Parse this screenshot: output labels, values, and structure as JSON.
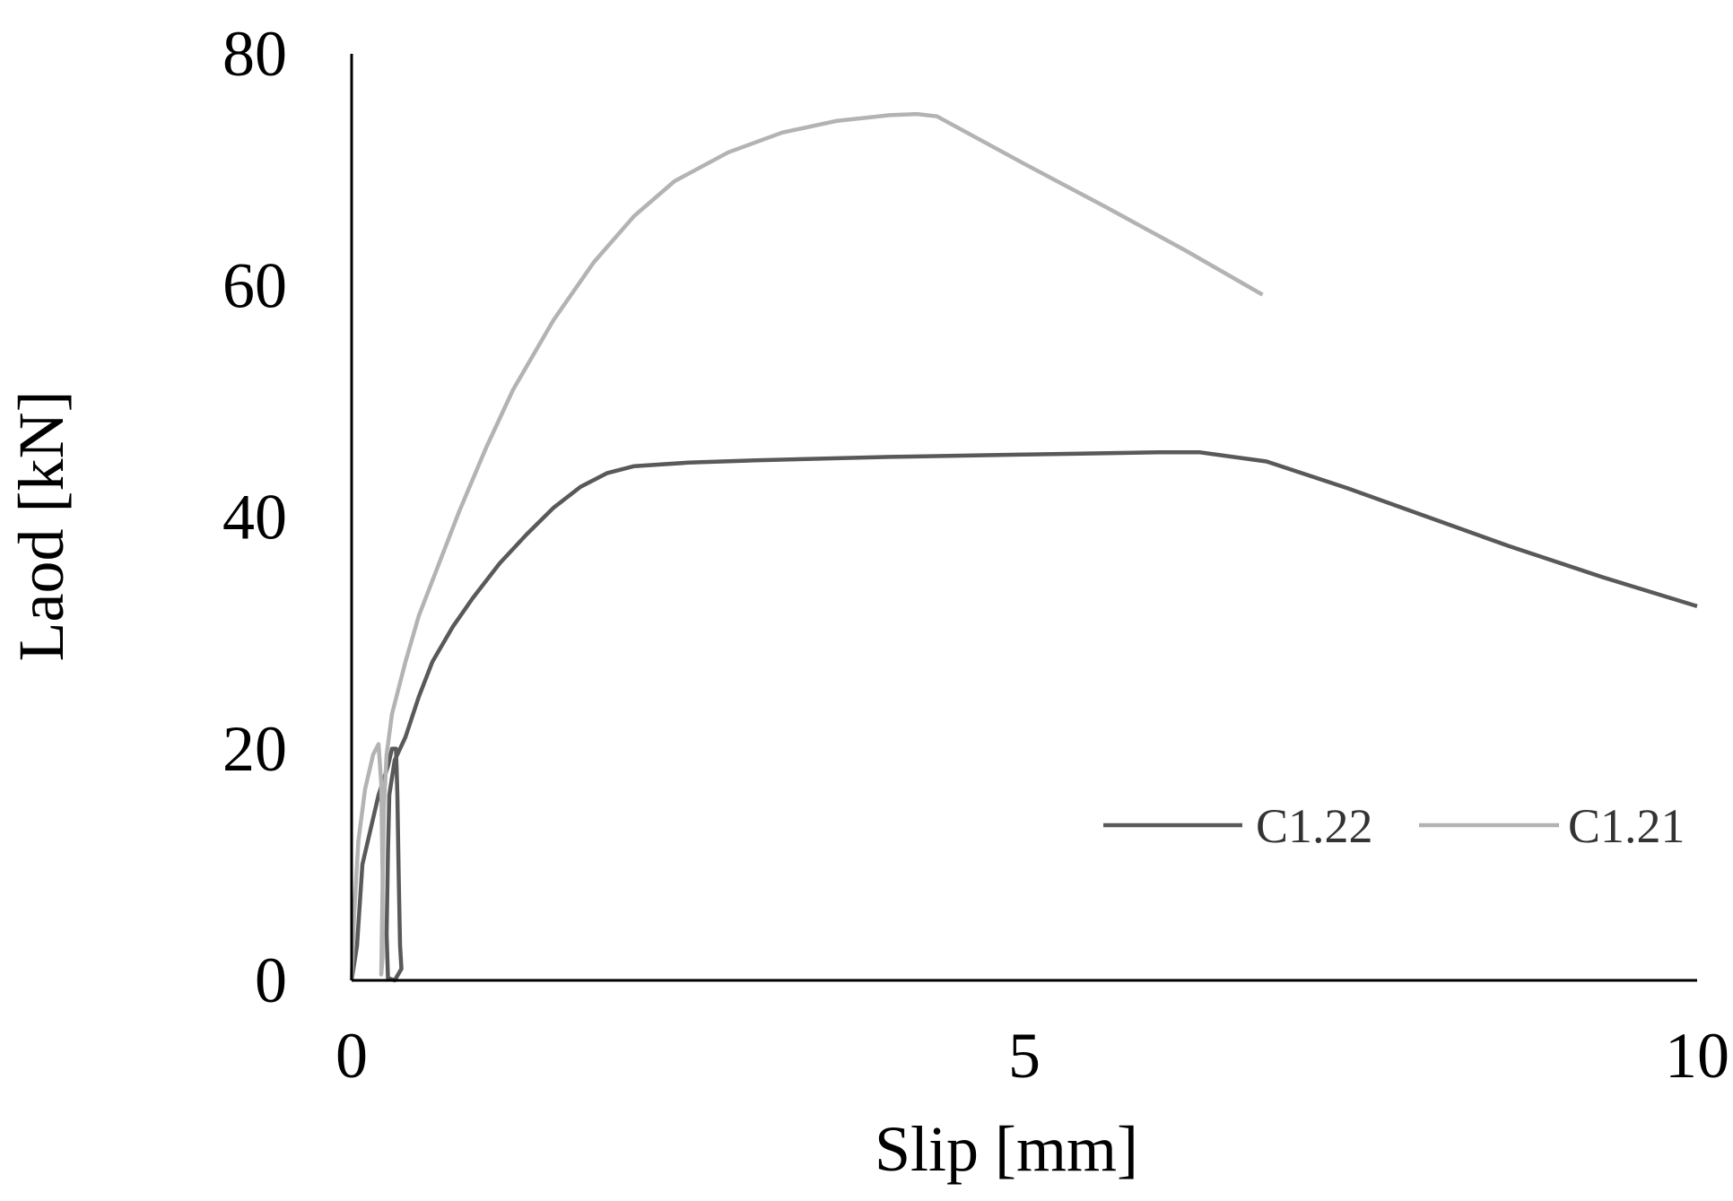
{
  "chart_data": {
    "type": "line",
    "title": "",
    "xlabel": "Slip [mm]",
    "ylabel": "Laod [kN]",
    "xlim": [
      0,
      10
    ],
    "ylim": [
      0,
      80
    ],
    "x_ticks": [
      "0",
      "5",
      "10"
    ],
    "y_ticks": [
      "0",
      "20",
      "40",
      "60",
      "80"
    ],
    "grid": false,
    "legend": {
      "position": "bottom-right"
    },
    "series": [
      {
        "name": "C1.22",
        "color": "#595959",
        "points": [
          [
            0.0,
            0.0
          ],
          [
            0.04,
            3.0
          ],
          [
            0.08,
            10.0
          ],
          [
            0.14,
            13.0
          ],
          [
            0.2,
            16.0
          ],
          [
            0.27,
            18.5
          ],
          [
            0.3,
            20.0
          ],
          [
            0.33,
            20.0
          ],
          [
            0.34,
            16.0
          ],
          [
            0.35,
            9.0
          ],
          [
            0.36,
            3.0
          ],
          [
            0.37,
            1.0
          ],
          [
            0.32,
            0.0
          ],
          [
            0.27,
            0.2
          ],
          [
            0.26,
            4.0
          ],
          [
            0.27,
            11.0
          ],
          [
            0.28,
            16.0
          ],
          [
            0.32,
            19.0
          ],
          [
            0.4,
            21.0
          ],
          [
            0.5,
            24.5
          ],
          [
            0.6,
            27.5
          ],
          [
            0.75,
            30.5
          ],
          [
            0.9,
            33.0
          ],
          [
            1.1,
            36.0
          ],
          [
            1.3,
            38.5
          ],
          [
            1.5,
            40.8
          ],
          [
            1.7,
            42.6
          ],
          [
            1.9,
            43.8
          ],
          [
            2.1,
            44.4
          ],
          [
            2.5,
            44.7
          ],
          [
            3.0,
            44.9
          ],
          [
            4.0,
            45.2
          ],
          [
            5.0,
            45.4
          ],
          [
            6.0,
            45.6
          ],
          [
            6.3,
            45.6
          ],
          [
            6.8,
            44.8
          ],
          [
            7.4,
            42.5
          ],
          [
            8.0,
            40.0
          ],
          [
            8.6,
            37.5
          ],
          [
            9.3,
            34.8
          ],
          [
            10.0,
            32.3
          ]
        ]
      },
      {
        "name": "C1.21",
        "color": "#b3b3b3",
        "points": [
          [
            0.0,
            0.0
          ],
          [
            0.02,
            6.0
          ],
          [
            0.05,
            12.0
          ],
          [
            0.1,
            16.5
          ],
          [
            0.16,
            19.5
          ],
          [
            0.2,
            20.4
          ],
          [
            0.22,
            17.0
          ],
          [
            0.23,
            9.0
          ],
          [
            0.23,
            2.0
          ],
          [
            0.22,
            0.5
          ],
          [
            0.23,
            8.0
          ],
          [
            0.24,
            15.0
          ],
          [
            0.26,
            19.5
          ],
          [
            0.3,
            23.0
          ],
          [
            0.4,
            27.5
          ],
          [
            0.5,
            31.5
          ],
          [
            0.65,
            36.0
          ],
          [
            0.8,
            40.5
          ],
          [
            1.0,
            46.0
          ],
          [
            1.2,
            51.0
          ],
          [
            1.5,
            57.0
          ],
          [
            1.8,
            62.0
          ],
          [
            2.1,
            66.0
          ],
          [
            2.4,
            69.0
          ],
          [
            2.8,
            71.5
          ],
          [
            3.2,
            73.2
          ],
          [
            3.6,
            74.2
          ],
          [
            4.0,
            74.7
          ],
          [
            4.2,
            74.8
          ],
          [
            4.35,
            74.6
          ],
          [
            5.0,
            70.5
          ],
          [
            5.6,
            66.8
          ],
          [
            6.2,
            63.0
          ],
          [
            6.77,
            59.2
          ]
        ]
      }
    ]
  }
}
